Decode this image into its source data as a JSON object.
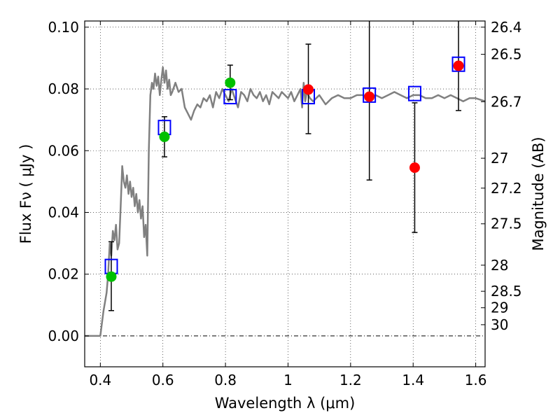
{
  "chart_data": {
    "type": "scatter",
    "xlabel": "Wavelength  λ (μm)",
    "ylabel": "Flux  Fν  ( μJy )",
    "y2label": "Magnitude (AB)",
    "xlim": [
      0.35,
      1.63
    ],
    "ylim": [
      -0.01,
      0.102
    ],
    "grid": true,
    "x_ticks": [
      0.4,
      0.6,
      0.8,
      1.0,
      1.2,
      1.4,
      1.6
    ],
    "x_tick_labels": [
      "0.4",
      "0.6",
      "0.8",
      "1",
      "1.2",
      "1.4",
      "1.6"
    ],
    "y_ticks": [
      0.0,
      0.02,
      0.04,
      0.06,
      0.08,
      0.1
    ],
    "y_tick_labels": [
      "0.00",
      "0.02",
      "0.04",
      "0.06",
      "0.08",
      "0.10"
    ],
    "mag_ticks": [
      26.4,
      26.5,
      26.7,
      27,
      27.2,
      27.5,
      28,
      28.5,
      29,
      30
    ],
    "mag_tick_labels": [
      "26.4",
      "26.5",
      "26.7",
      "27",
      "27.2",
      "27.5",
      "28",
      "28.5",
      "29",
      "30"
    ],
    "colors": {
      "model": "#808080",
      "green": "#00c000",
      "red": "#ff0000",
      "box": "#0000ff",
      "errorbar": "#000000"
    },
    "model_spectrum": {
      "x": [
        0.35,
        0.38,
        0.4,
        0.41,
        0.42,
        0.425,
        0.43,
        0.435,
        0.44,
        0.445,
        0.45,
        0.455,
        0.46,
        0.465,
        0.47,
        0.475,
        0.48,
        0.485,
        0.49,
        0.495,
        0.5,
        0.505,
        0.51,
        0.515,
        0.52,
        0.525,
        0.53,
        0.535,
        0.54,
        0.545,
        0.55,
        0.555,
        0.56,
        0.565,
        0.57,
        0.575,
        0.58,
        0.585,
        0.59,
        0.595,
        0.6,
        0.605,
        0.61,
        0.615,
        0.62,
        0.625,
        0.63,
        0.64,
        0.65,
        0.66,
        0.67,
        0.68,
        0.69,
        0.7,
        0.71,
        0.72,
        0.73,
        0.74,
        0.75,
        0.76,
        0.77,
        0.78,
        0.79,
        0.8,
        0.81,
        0.82,
        0.83,
        0.84,
        0.85,
        0.86,
        0.87,
        0.88,
        0.89,
        0.9,
        0.91,
        0.92,
        0.93,
        0.94,
        0.95,
        0.96,
        0.97,
        0.98,
        0.99,
        1.0,
        1.01,
        1.02,
        1.03,
        1.04,
        1.045,
        1.05,
        1.055,
        1.06,
        1.07,
        1.08,
        1.09,
        1.1,
        1.12,
        1.14,
        1.16,
        1.18,
        1.2,
        1.22,
        1.24,
        1.26,
        1.28,
        1.3,
        1.32,
        1.34,
        1.36,
        1.38,
        1.4,
        1.42,
        1.44,
        1.46,
        1.48,
        1.5,
        1.52,
        1.54,
        1.56,
        1.58,
        1.6,
        1.63
      ],
      "y": [
        0.0,
        0.0,
        0.0,
        0.008,
        0.014,
        0.02,
        0.03,
        0.026,
        0.034,
        0.031,
        0.036,
        0.028,
        0.03,
        0.042,
        0.055,
        0.05,
        0.048,
        0.052,
        0.046,
        0.05,
        0.045,
        0.048,
        0.042,
        0.046,
        0.04,
        0.044,
        0.038,
        0.042,
        0.032,
        0.036,
        0.026,
        0.06,
        0.078,
        0.082,
        0.08,
        0.085,
        0.081,
        0.084,
        0.078,
        0.083,
        0.087,
        0.082,
        0.086,
        0.08,
        0.083,
        0.078,
        0.079,
        0.082,
        0.079,
        0.08,
        0.074,
        0.072,
        0.07,
        0.073,
        0.075,
        0.074,
        0.077,
        0.076,
        0.078,
        0.074,
        0.079,
        0.077,
        0.08,
        0.078,
        0.076,
        0.08,
        0.077,
        0.074,
        0.079,
        0.078,
        0.076,
        0.08,
        0.078,
        0.077,
        0.079,
        0.076,
        0.078,
        0.075,
        0.079,
        0.078,
        0.077,
        0.079,
        0.078,
        0.077,
        0.079,
        0.076,
        0.078,
        0.08,
        0.074,
        0.082,
        0.076,
        0.079,
        0.077,
        0.076,
        0.077,
        0.078,
        0.075,
        0.077,
        0.078,
        0.077,
        0.077,
        0.078,
        0.078,
        0.077,
        0.078,
        0.077,
        0.078,
        0.079,
        0.078,
        0.077,
        0.078,
        0.078,
        0.077,
        0.077,
        0.078,
        0.077,
        0.078,
        0.077,
        0.076,
        0.077,
        0.077,
        0.076
      ]
    },
    "model_photometry_boxes": {
      "x": [
        0.435,
        0.605,
        0.815,
        1.065,
        1.26,
        1.405,
        1.545
      ],
      "y": [
        0.0225,
        0.0675,
        0.0775,
        0.0775,
        0.078,
        0.0785,
        0.088
      ]
    },
    "observed_green": {
      "x": [
        0.435,
        0.605,
        0.815
      ],
      "y": [
        0.0192,
        0.0645,
        0.082
      ],
      "yerr_low": [
        0.0082,
        0.058,
        0.0765
      ],
      "yerr_high": [
        0.0305,
        0.071,
        0.0877
      ]
    },
    "observed_red": {
      "x": [
        1.065,
        1.26,
        1.405,
        1.545
      ],
      "y": [
        0.0798,
        0.0775,
        0.0545,
        0.0875
      ],
      "yerr_low": [
        0.0655,
        0.0505,
        0.0335,
        0.073
      ],
      "yerr_high": [
        0.0945,
        0.102,
        0.0755,
        0.102
      ]
    }
  }
}
